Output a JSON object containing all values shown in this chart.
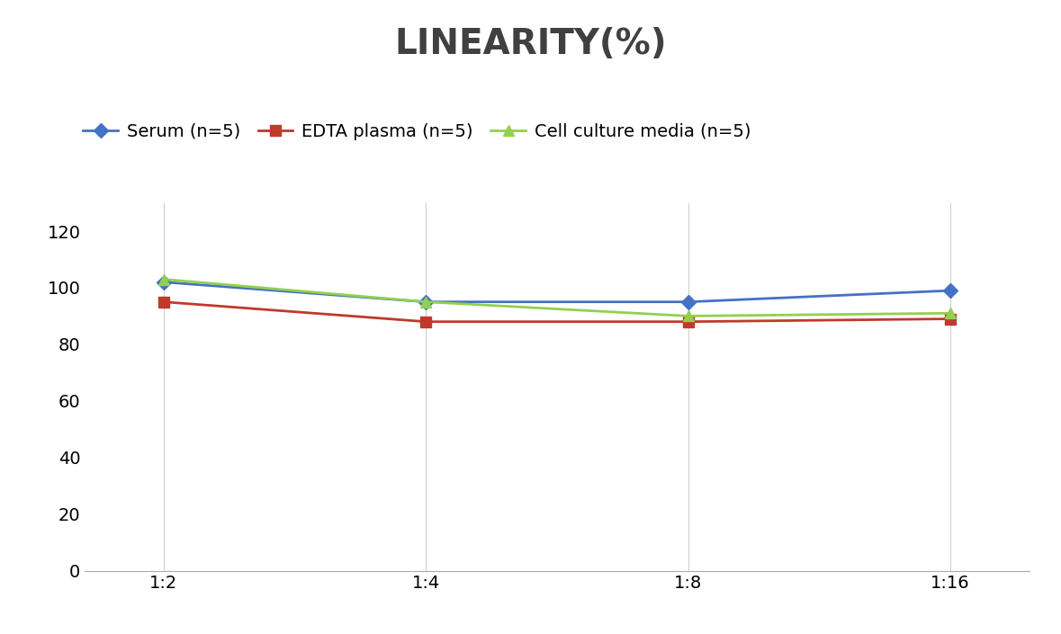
{
  "title": "LINEARITY(%)",
  "title_fontsize": 28,
  "title_fontweight": "bold",
  "title_color": "#404040",
  "x_labels": [
    "1:2",
    "1:4",
    "1:8",
    "1:16"
  ],
  "x_positions": [
    0,
    1,
    2,
    3
  ],
  "series": [
    {
      "label": "Serum (n=5)",
      "values": [
        102,
        95,
        95,
        99
      ],
      "color": "#4472C4",
      "marker": "D",
      "markersize": 8,
      "linewidth": 2.0
    },
    {
      "label": "EDTA plasma (n=5)",
      "values": [
        95,
        88,
        88,
        89
      ],
      "color": "#C0392B",
      "marker": "s",
      "markersize": 8,
      "linewidth": 2.0
    },
    {
      "label": "Cell culture media (n=5)",
      "values": [
        103,
        95,
        90,
        91
      ],
      "color": "#92D050",
      "marker": "^",
      "markersize": 8,
      "linewidth": 2.0
    }
  ],
  "ylim": [
    0,
    130
  ],
  "yticks": [
    0,
    20,
    40,
    60,
    80,
    100,
    120
  ],
  "grid_color": "#D0D0D0",
  "grid_linewidth": 0.8,
  "background_color": "#FFFFFF",
  "legend_fontsize": 14,
  "tick_fontsize": 14
}
